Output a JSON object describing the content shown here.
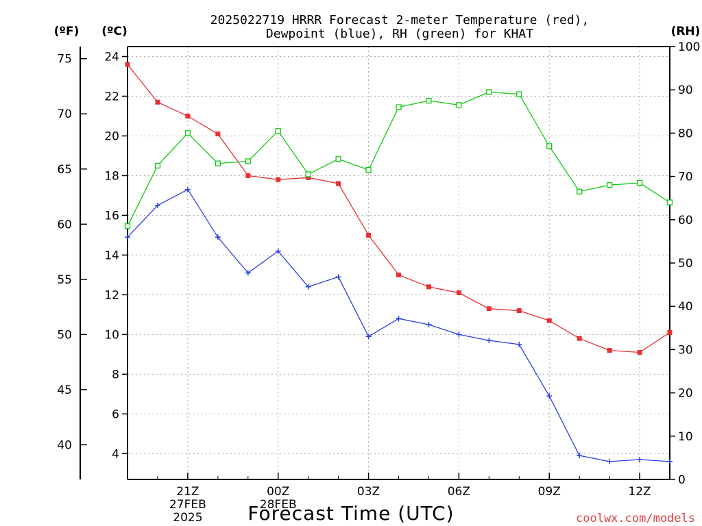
{
  "title_line1": "2025022719 HRRR Forecast 2-meter Temperature (red),",
  "title_line2": "Dewpoint (blue), RH (green) for KHAT",
  "credit": "coolwx.com/models",
  "chart_data": {
    "type": "line",
    "title": "2025022719 HRRR Forecast 2-meter Temperature (red), Dewpoint (blue), RH (green) for KHAT",
    "xlabel": "Forecast Time (UTC)",
    "x_hours_utc": [
      "19Z",
      "20Z",
      "21Z",
      "22Z",
      "23Z",
      "00Z",
      "01Z",
      "02Z",
      "03Z",
      "04Z",
      "05Z",
      "06Z",
      "07Z",
      "08Z",
      "09Z",
      "10Z",
      "11Z",
      "12Z",
      "13Z"
    ],
    "x_tick_labels": [
      {
        "label": "21Z",
        "sub": [
          "27FEB",
          "2025"
        ]
      },
      {
        "label": "00Z",
        "sub": [
          "28FEB"
        ]
      },
      {
        "label": "03Z",
        "sub": []
      },
      {
        "label": "06Z",
        "sub": []
      },
      {
        "label": "09Z",
        "sub": []
      },
      {
        "label": "12Z",
        "sub": []
      }
    ],
    "axes": {
      "fahrenheit": {
        "unit_label": "(ºF)",
        "ticks": [
          40,
          45,
          50,
          55,
          60,
          65,
          70,
          75
        ]
      },
      "celsius": {
        "unit_label": "(ºC)",
        "ylim": [
          2.7,
          24.5
        ],
        "ticks": [
          4,
          6,
          8,
          10,
          12,
          14,
          16,
          18,
          20,
          22,
          24
        ]
      },
      "rh": {
        "unit_label": "(RH)",
        "ylim": [
          0,
          100
        ],
        "ticks": [
          0,
          10,
          20,
          30,
          40,
          50,
          60,
          70,
          80,
          90,
          100
        ]
      }
    },
    "grid": true,
    "series": [
      {
        "color": "#e83030",
        "marker": "filled-square",
        "axis": "celsius",
        "values": [
          23.6,
          21.7,
          21.0,
          20.1,
          18.0,
          17.8,
          17.9,
          17.6,
          15.0,
          13.0,
          12.4,
          12.1,
          11.3,
          11.2,
          10.7,
          9.8,
          9.2,
          9.1,
          10.1
        ]
      },
      {
        "color": "#2a3fe0",
        "marker": "plus",
        "axis": "celsius",
        "values": [
          14.9,
          16.5,
          17.3,
          14.9,
          13.1,
          14.2,
          12.4,
          12.9,
          9.9,
          10.8,
          10.5,
          10.0,
          9.7,
          9.5,
          6.9,
          3.9,
          3.6,
          3.7,
          3.6
        ]
      },
      {
        "color": "#10c810",
        "marker": "open-square",
        "axis": "rh",
        "values": [
          58.5,
          72.5,
          80.0,
          73.0,
          73.5,
          80.5,
          70.5,
          74.0,
          71.5,
          86.0,
          87.5,
          86.5,
          89.5,
          89.0,
          77.0,
          66.5,
          68.0,
          68.5,
          64.0
        ]
      }
    ]
  }
}
